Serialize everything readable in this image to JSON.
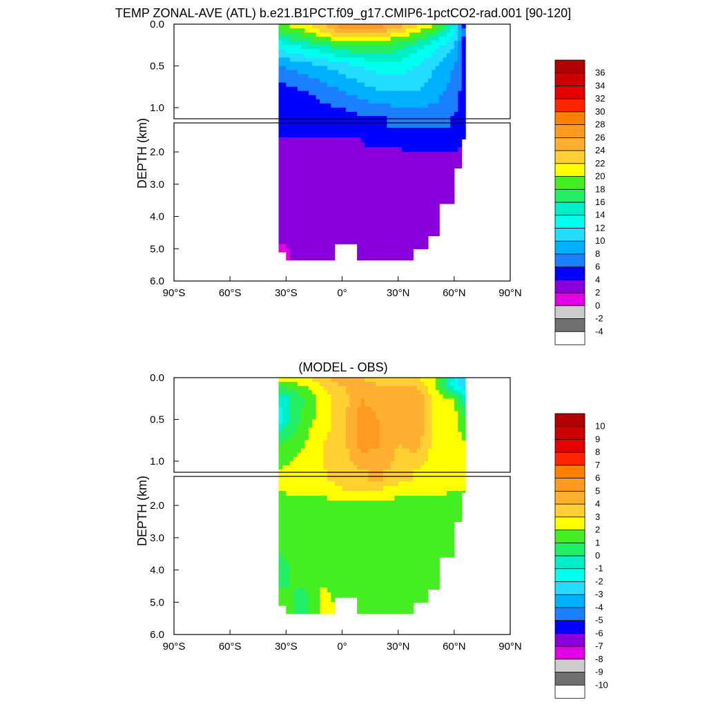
{
  "figure_title": "TEMP ZONAL-AVE (ATL) b.e21.B1PCT.f09_g17.CMIP6-1pctCO2-rad.001 [90-120]",
  "chart_data": [
    {
      "type": "heatmap",
      "title": "TEMP ZONAL-AVE (ATL) b.e21.B1PCT.f09_g17.CMIP6-1pctCO2-rad.001 [90-120]",
      "ylabel": "DEPTH (km)",
      "xlim": [
        -90,
        90
      ],
      "ylim": [
        6.0,
        0.0
      ],
      "xticks": [
        "90°S",
        "60°S",
        "30°S",
        "0°",
        "30°N",
        "60°N",
        "90°N"
      ],
      "yticks_upper": [
        "0.0",
        "0.5",
        "1.0"
      ],
      "yticks_lower": [
        "2.0",
        "3.0",
        "4.0",
        "5.0",
        "6.0"
      ],
      "levels": [
        36,
        34,
        32,
        30,
        28,
        26,
        24,
        22,
        20,
        18,
        16,
        14,
        12,
        10,
        8,
        6,
        4,
        2,
        0,
        -2,
        -4
      ],
      "colors": [
        "#b00000",
        "#cc0000",
        "#e60000",
        "#ff2400",
        "#ff8000",
        "#ff9a20",
        "#ffb030",
        "#ffd030",
        "#ffff00",
        "#44ee22",
        "#22ee66",
        "#00eec8",
        "#00ffee",
        "#22ddff",
        "#00b0ff",
        "#1a80ff",
        "#0000ff",
        "#8a00dd",
        "#e400e4",
        "#cccccc",
        "#707070",
        "#ffffff"
      ],
      "data_extent_lat": [
        -34,
        66
      ],
      "profile": {
        "lat": [
          -34,
          -20,
          -10,
          0,
          10,
          20,
          30,
          40,
          50,
          60,
          66
        ],
        "depth_km": [
          0,
          0.1,
          0.25,
          0.5,
          0.8,
          1.1,
          1.5,
          2.0,
          2.5,
          3.0,
          4.0,
          5.0
        ],
        "temp_c": [
          [
            20,
            22,
            24,
            28,
            28,
            27,
            25,
            23,
            20,
            14,
            4
          ],
          [
            17,
            19,
            22,
            24,
            25,
            24,
            22,
            20,
            17,
            12,
            5
          ],
          [
            13,
            15,
            16,
            18,
            18,
            18,
            17,
            15,
            13,
            10,
            5
          ],
          [
            8,
            9,
            10,
            11,
            12,
            13,
            13,
            12,
            10,
            8,
            5
          ],
          [
            5,
            6,
            7,
            8,
            9,
            10,
            10,
            10,
            9,
            7,
            5
          ],
          [
            4,
            4,
            5,
            5,
            6,
            6,
            7,
            7,
            7,
            6,
            5
          ],
          [
            4,
            4,
            4,
            4,
            4,
            4.5,
            4.5,
            4.5,
            5,
            5,
            4
          ],
          [
            3.5,
            3.7,
            3.9,
            3.9,
            3.9,
            3.9,
            3.9,
            4,
            4,
            4,
            3.8
          ],
          [
            3,
            3.3,
            3.4,
            3.5,
            3.5,
            3.5,
            3.5,
            3.5,
            3.6,
            3.7,
            3.5
          ],
          [
            2.7,
            3,
            3,
            3,
            3.1,
            3.2,
            3.2,
            3.2,
            3.3,
            3.4,
            3.3
          ],
          [
            2.4,
            2.6,
            2.7,
            2.8,
            2.8,
            2.9,
            2.9,
            2.9,
            3,
            3,
            3
          ],
          [
            1.9,
            2.1,
            2.3,
            2.3,
            2.3,
            2.4,
            2.4,
            2.5,
            2.5,
            2.6,
            2.6
          ]
        ]
      }
    },
    {
      "type": "heatmap",
      "title": "(MODEL - OBS)",
      "ylabel": "DEPTH (km)",
      "xlim": [
        -90,
        90
      ],
      "ylim": [
        6.0,
        0.0
      ],
      "xticks": [
        "90°S",
        "60°S",
        "30°S",
        "0°",
        "30°N",
        "60°N",
        "90°N"
      ],
      "yticks_upper": [
        "0.0",
        "0.5",
        "1.0"
      ],
      "yticks_lower": [
        "2.0",
        "3.0",
        "4.0",
        "5.0",
        "6.0"
      ],
      "levels": [
        10,
        9,
        8,
        7,
        6,
        5,
        4,
        3,
        2,
        1,
        0,
        -1,
        -2,
        -3,
        -4,
        -5,
        -6,
        -7,
        -8,
        -9,
        -10
      ],
      "colors": [
        "#b00000",
        "#cc0000",
        "#e60000",
        "#ff2400",
        "#ff8000",
        "#ff9a20",
        "#ffb030",
        "#ffd030",
        "#ffff00",
        "#44ee22",
        "#22ee66",
        "#00eec8",
        "#00ffee",
        "#22ddff",
        "#00b0ff",
        "#1a80ff",
        "#0000ff",
        "#8a00dd",
        "#e400e4",
        "#cccccc",
        "#707070",
        "#ffffff"
      ],
      "data_extent_lat": [
        -34,
        66
      ],
      "profile": {
        "lat": [
          -34,
          -20,
          -10,
          0,
          10,
          20,
          30,
          40,
          50,
          60,
          66
        ],
        "depth_km": [
          0,
          0.1,
          0.25,
          0.5,
          0.8,
          1.1,
          1.5,
          2.0,
          2.5,
          3.0,
          4.0,
          5.0
        ],
        "diff_c": [
          [
            2.5,
            3,
            3.5,
            5,
            4,
            3.5,
            3.5,
            3,
            2,
            -1,
            -3
          ],
          [
            1,
            2,
            3,
            4,
            4.5,
            4,
            4,
            4,
            2,
            -2,
            -3
          ],
          [
            -1,
            1,
            2.5,
            3.5,
            5,
            4.5,
            4,
            5,
            2.5,
            2,
            -1
          ],
          [
            -1.5,
            1.5,
            2.5,
            3.5,
            5.5,
            5,
            4,
            5,
            2.5,
            2.5,
            1
          ],
          [
            1,
            2,
            3,
            3.5,
            5.5,
            5,
            4,
            4.5,
            2.5,
            2.5,
            2
          ],
          [
            2,
            2.5,
            3,
            3.5,
            4,
            4.5,
            3.5,
            3,
            2.5,
            2.5,
            2
          ],
          [
            2,
            2.5,
            2.5,
            3,
            3,
            3,
            2.5,
            2.5,
            2.5,
            2,
            2
          ],
          [
            1.5,
            1.5,
            1.5,
            1.5,
            1.5,
            1.5,
            1.5,
            1.5,
            1.5,
            1.5,
            1.5
          ],
          [
            1.5,
            1.5,
            1.5,
            1.5,
            1.5,
            1.5,
            1.5,
            1.5,
            1.5,
            1.5,
            1.5
          ],
          [
            1.5,
            1.5,
            1.5,
            1.5,
            1.5,
            1.5,
            1.5,
            1.5,
            1.5,
            1.5,
            1.5
          ],
          [
            0.5,
            1.5,
            1.5,
            1.5,
            1.5,
            1.5,
            1.5,
            1.5,
            1.5,
            1.5,
            1.5
          ],
          [
            1.5,
            0.5,
            2.5,
            1.5,
            1.5,
            1.5,
            1.5,
            1.5,
            1.5,
            1.5,
            1.5
          ]
        ]
      }
    }
  ]
}
